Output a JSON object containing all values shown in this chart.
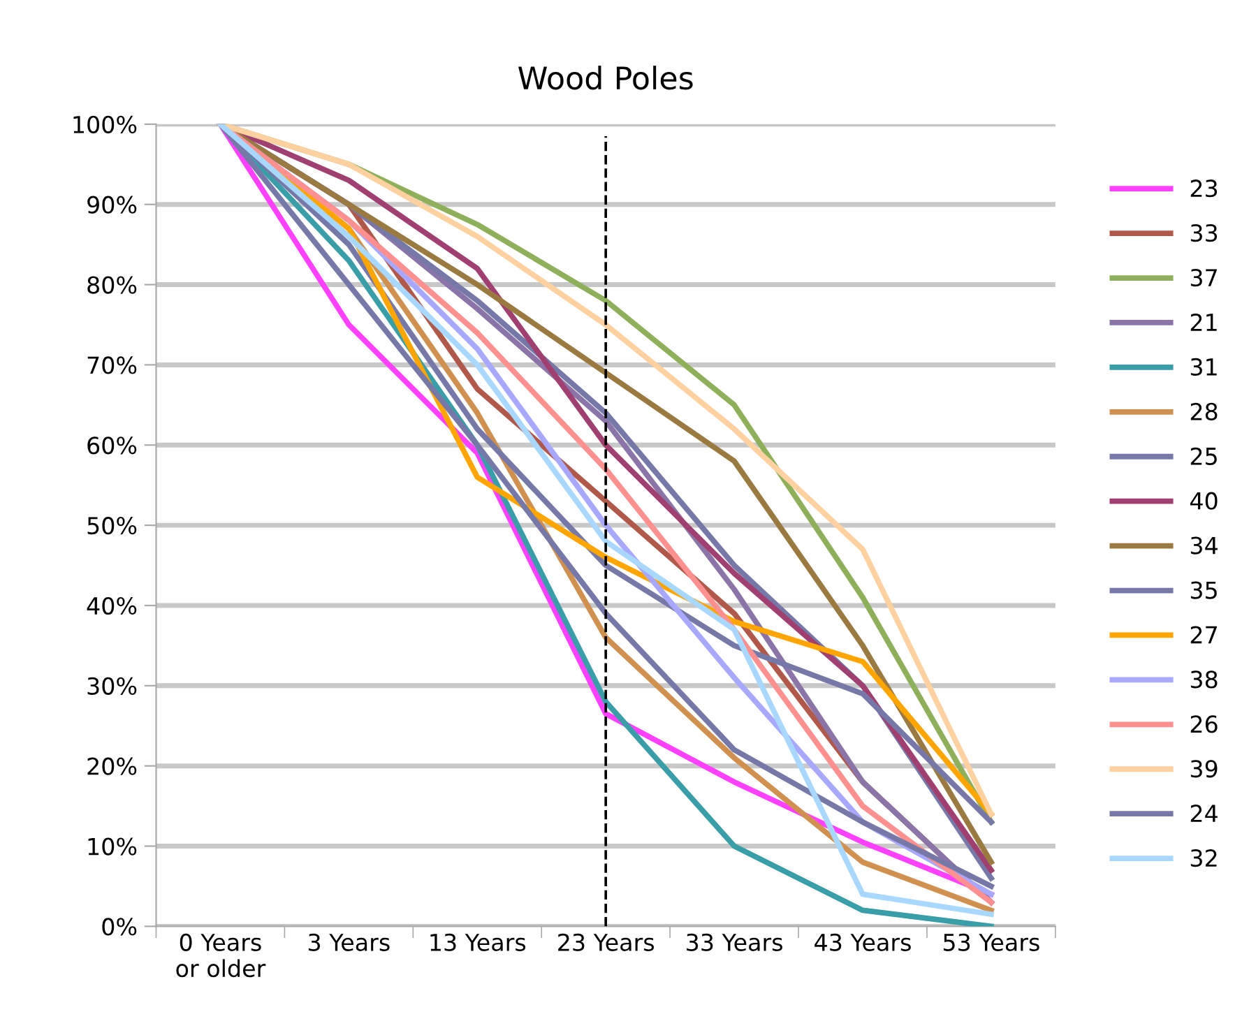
{
  "chart_data": {
    "type": "line",
    "title": "Wood Poles",
    "categories": [
      "0 Years\nor older",
      "3 Years",
      "13 Years",
      "23 Years",
      "33 Years",
      "43 Years",
      "53 Years"
    ],
    "ylim": [
      0,
      100
    ],
    "yticks": [
      {
        "value": 0,
        "label": "0%"
      },
      {
        "value": 10,
        "label": "10%"
      },
      {
        "value": 20,
        "label": "20%"
      },
      {
        "value": 30,
        "label": "30%"
      },
      {
        "value": 40,
        "label": "40%"
      },
      {
        "value": 50,
        "label": "50%"
      },
      {
        "value": 60,
        "label": "60%"
      },
      {
        "value": 70,
        "label": "70%"
      },
      {
        "value": 80,
        "label": "80%"
      },
      {
        "value": 90,
        "label": "90%"
      },
      {
        "value": 100,
        "label": "100%"
      }
    ],
    "ref_lines": [
      {
        "axis": "x",
        "value": "23 Years",
        "color": "#000000",
        "line_style": "dashed"
      }
    ],
    "grid": "y",
    "legend": "right",
    "marker": "none",
    "line_style": "solid",
    "series": [
      {
        "name": "23",
        "color": "#ff40ff",
        "values": [
          100,
          75,
          59,
          26.5,
          18,
          10.5,
          4
        ]
      },
      {
        "name": "33",
        "color": "#b0584a",
        "values": [
          100,
          90,
          67,
          53,
          39,
          18,
          3
        ]
      },
      {
        "name": "37",
        "color": "#8fb05a",
        "values": [
          100,
          95,
          87.5,
          78,
          65,
          41,
          13
        ]
      },
      {
        "name": "21",
        "color": "#8a74a8",
        "values": [
          100,
          90,
          77,
          63,
          42,
          18,
          3
        ]
      },
      {
        "name": "31",
        "color": "#3a9ea8",
        "values": [
          100,
          83,
          60,
          28,
          10,
          2,
          0
        ]
      },
      {
        "name": "28",
        "color": "#d09050",
        "values": [
          100,
          87,
          64,
          36,
          21,
          8,
          2
        ]
      },
      {
        "name": "25",
        "color": "#7679a8",
        "values": [
          100,
          90,
          78,
          64,
          45,
          30,
          6
        ]
      },
      {
        "name": "40",
        "color": "#a04070",
        "values": [
          100,
          93,
          82,
          60,
          44,
          30,
          7
        ]
      },
      {
        "name": "34",
        "color": "#9a7a40",
        "values": [
          100,
          90,
          80,
          69,
          58,
          35,
          8
        ]
      },
      {
        "name": "35",
        "color": "#7679a8",
        "values": [
          100,
          85,
          62,
          45,
          35,
          29,
          13
        ]
      },
      {
        "name": "27",
        "color": "#ffa500",
        "values": [
          100,
          87,
          56,
          46,
          38,
          33,
          14
        ]
      },
      {
        "name": "38",
        "color": "#a8a8ff",
        "values": [
          100,
          88,
          72,
          50,
          31,
          13,
          4
        ]
      },
      {
        "name": "26",
        "color": "#ff9090",
        "values": [
          100,
          88,
          74,
          57,
          37,
          15,
          3
        ]
      },
      {
        "name": "39",
        "color": "#ffd0a0",
        "values": [
          100,
          95,
          86,
          75,
          62,
          47,
          14
        ]
      },
      {
        "name": "24",
        "color": "#7679a8",
        "values": [
          100,
          80,
          60,
          39,
          22,
          13,
          5
        ]
      },
      {
        "name": "32",
        "color": "#a8d8ff",
        "values": [
          100,
          86,
          70,
          48,
          37,
          4,
          1.5
        ]
      }
    ]
  }
}
